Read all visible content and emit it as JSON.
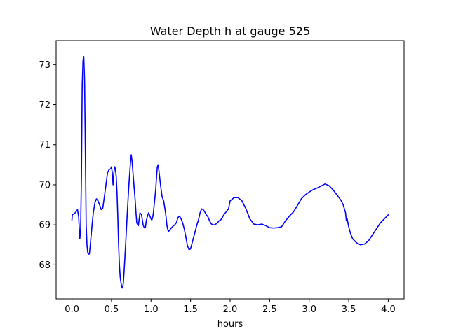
{
  "chart_data": {
    "type": "line",
    "title": "Water Depth h at gauge 525",
    "xlabel": "hours",
    "ylabel": "",
    "xlim": [
      -0.2,
      4.2
    ],
    "ylim": [
      67.15,
      73.6
    ],
    "grid": false,
    "xticks": [
      0.0,
      0.5,
      1.0,
      1.5,
      2.0,
      2.5,
      3.0,
      3.5,
      4.0
    ],
    "xtick_labels": [
      "0.0",
      "0.5",
      "1.0",
      "1.5",
      "2.0",
      "2.5",
      "3.0",
      "3.5",
      "4.0"
    ],
    "yticks": [
      68,
      69,
      70,
      71,
      72,
      73
    ],
    "ytick_labels": [
      "68",
      "69",
      "70",
      "71",
      "72",
      "73"
    ],
    "series": [
      {
        "color": "#0000ff",
        "x": [
          0.0,
          0.005,
          0.01,
          0.03,
          0.05,
          0.07,
          0.085,
          0.1,
          0.11,
          0.12,
          0.13,
          0.14,
          0.15,
          0.16,
          0.17,
          0.18,
          0.19,
          0.2,
          0.21,
          0.22,
          0.23,
          0.25,
          0.27,
          0.29,
          0.31,
          0.33,
          0.35,
          0.37,
          0.39,
          0.41,
          0.43,
          0.45,
          0.47,
          0.49,
          0.5,
          0.51,
          0.52,
          0.53,
          0.54,
          0.55,
          0.56,
          0.57,
          0.58,
          0.59,
          0.6,
          0.61,
          0.62,
          0.63,
          0.64,
          0.65,
          0.66,
          0.67,
          0.68,
          0.7,
          0.72,
          0.74,
          0.75,
          0.76,
          0.78,
          0.8,
          0.81,
          0.82,
          0.84,
          0.86,
          0.88,
          0.9,
          0.91,
          0.92,
          0.93,
          0.94,
          0.95,
          0.96,
          0.97,
          0.98,
          0.99,
          1.0,
          1.01,
          1.02,
          1.03,
          1.04,
          1.05,
          1.06,
          1.07,
          1.08,
          1.09,
          1.1,
          1.12,
          1.14,
          1.16,
          1.18,
          1.19,
          1.2,
          1.21,
          1.22,
          1.24,
          1.26,
          1.28,
          1.3,
          1.32,
          1.34,
          1.36,
          1.38,
          1.4,
          1.42,
          1.44,
          1.46,
          1.48,
          1.5,
          1.52,
          1.54,
          1.56,
          1.58,
          1.6,
          1.62,
          1.64,
          1.66,
          1.68,
          1.7,
          1.72,
          1.74,
          1.76,
          1.78,
          1.8,
          1.82,
          1.84,
          1.86,
          1.88,
          1.9,
          1.92,
          1.94,
          1.96,
          1.98,
          2.0,
          2.05,
          2.1,
          2.15,
          2.2,
          2.25,
          2.3,
          2.35,
          2.4,
          2.45,
          2.5,
          2.55,
          2.6,
          2.65,
          2.7,
          2.75,
          2.8,
          2.85,
          2.9,
          2.95,
          3.0,
          3.05,
          3.1,
          3.15,
          3.2,
          3.25,
          3.3,
          3.35,
          3.4,
          3.43,
          3.46,
          3.47,
          3.48,
          3.49,
          3.5,
          3.52,
          3.55,
          3.6,
          3.65,
          3.7,
          3.75,
          3.8,
          3.85,
          3.9,
          3.95,
          4.0
        ],
        "y": [
          69.12,
          69.25,
          69.26,
          69.28,
          69.32,
          69.38,
          69.2,
          68.65,
          68.9,
          70.2,
          72.5,
          73.1,
          73.2,
          72.6,
          70.8,
          69.0,
          68.5,
          68.3,
          68.27,
          68.27,
          68.45,
          68.9,
          69.3,
          69.55,
          69.65,
          69.6,
          69.5,
          69.38,
          69.42,
          69.7,
          70.0,
          70.3,
          70.38,
          70.4,
          70.45,
          70.3,
          70.0,
          70.3,
          70.45,
          70.4,
          70.2,
          69.8,
          69.2,
          68.5,
          68.0,
          67.7,
          67.55,
          67.45,
          67.42,
          67.55,
          67.85,
          68.2,
          68.55,
          69.3,
          70.0,
          70.55,
          70.75,
          70.6,
          70.1,
          69.6,
          69.3,
          69.05,
          68.98,
          69.3,
          69.25,
          69.0,
          68.95,
          68.92,
          68.95,
          69.1,
          69.18,
          69.25,
          69.3,
          69.25,
          69.2,
          69.15,
          69.12,
          69.18,
          69.3,
          69.5,
          69.7,
          69.9,
          70.2,
          70.45,
          70.5,
          70.35,
          70.0,
          69.7,
          69.6,
          69.35,
          69.2,
          69.0,
          68.9,
          68.83,
          68.88,
          68.93,
          68.97,
          69.0,
          69.05,
          69.18,
          69.22,
          69.15,
          69.05,
          68.9,
          68.7,
          68.48,
          68.38,
          68.4,
          68.55,
          68.7,
          68.85,
          69.0,
          69.12,
          69.3,
          69.4,
          69.38,
          69.32,
          69.25,
          69.2,
          69.1,
          69.03,
          69.0,
          69.0,
          69.02,
          69.05,
          69.1,
          69.12,
          69.18,
          69.25,
          69.3,
          69.35,
          69.4,
          69.6,
          69.68,
          69.68,
          69.6,
          69.4,
          69.15,
          69.02,
          69.0,
          69.02,
          68.98,
          68.93,
          68.92,
          68.93,
          68.95,
          69.1,
          69.22,
          69.32,
          69.48,
          69.65,
          69.75,
          69.82,
          69.88,
          69.92,
          69.97,
          70.02,
          69.98,
          69.88,
          69.75,
          69.62,
          69.5,
          69.3,
          69.1,
          69.15,
          69.05,
          68.95,
          68.8,
          68.65,
          68.55,
          68.5,
          68.52,
          68.6,
          68.75,
          68.9,
          69.05,
          69.15,
          69.25
        ]
      }
    ]
  }
}
